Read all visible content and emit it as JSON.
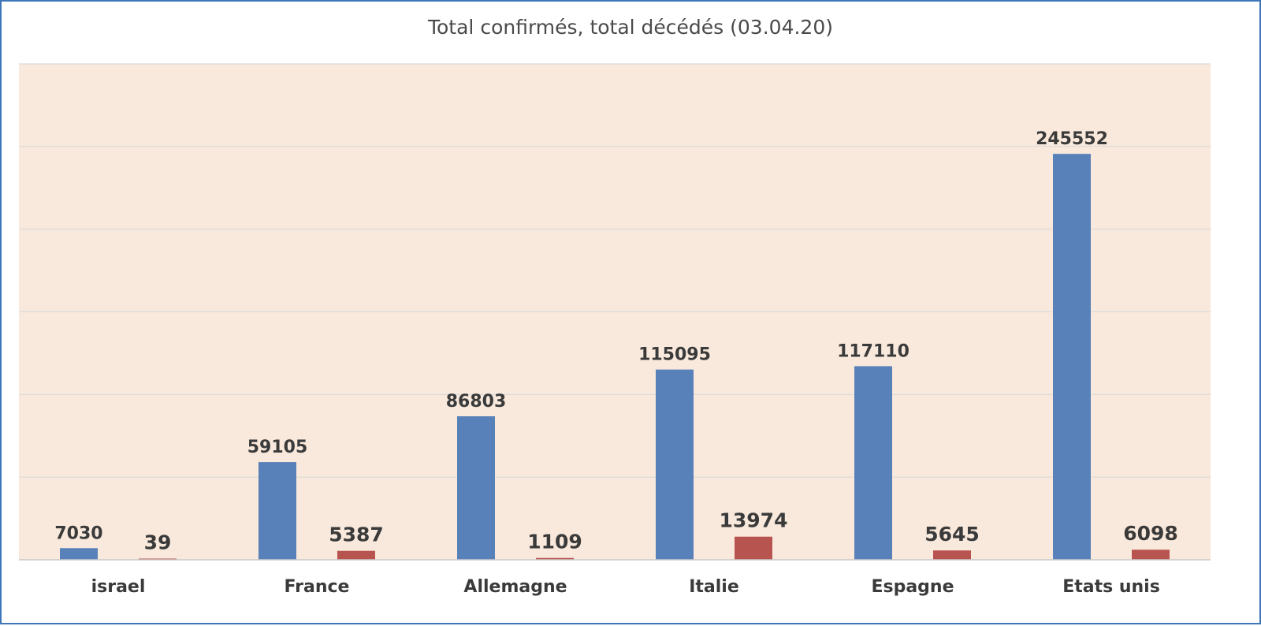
{
  "chart_data": {
    "type": "bar",
    "title": "Total confirmés, total décédés  (03.04.20)",
    "categories": [
      "israel",
      "France",
      "Allemagne",
      "Italie",
      "Espagne",
      "Etats unis"
    ],
    "series": [
      {
        "values": [
          7030,
          59105,
          86803,
          115095,
          117110,
          245552
        ],
        "color": "#5781b8"
      },
      {
        "values": [
          39,
          5387,
          1109,
          13974,
          5645,
          6098
        ],
        "color": "#b85450"
      }
    ],
    "ylim": [
      0,
      300000
    ],
    "y_gridline_step": 50000,
    "y_tick_labels_shown": false,
    "grid": true,
    "legend": "none",
    "plot_background": "#f9e9dc",
    "gridline_color": "#d9d9d9",
    "axis_color": "#c8c8c8"
  }
}
